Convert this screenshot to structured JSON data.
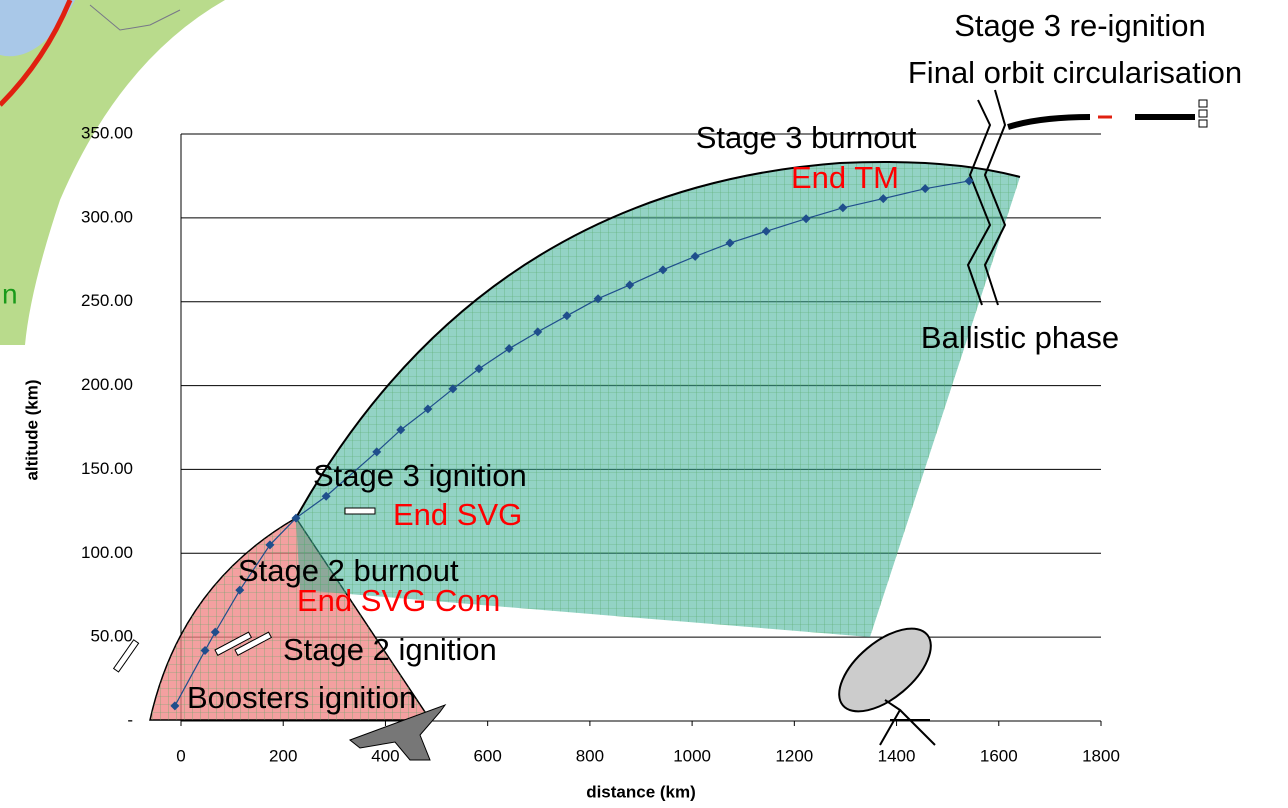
{
  "chart_data": {
    "type": "line",
    "xlabel": "distance (km)",
    "ylabel": "altitude (km)",
    "xlim": [
      0,
      1800
    ],
    "ylim": [
      0,
      350
    ],
    "xticks": [
      0,
      200,
      400,
      600,
      800,
      1000,
      1200,
      1400,
      1600,
      1800
    ],
    "yticks": [
      {
        "value": 0,
        "label": "-"
      },
      {
        "value": 50,
        "label": "50.00"
      },
      {
        "value": 100,
        "label": "100.00"
      },
      {
        "value": 150,
        "label": "150.00"
      },
      {
        "value": 200,
        "label": "200.00"
      },
      {
        "value": 250,
        "label": "250.00"
      },
      {
        "value": 300,
        "label": "300.00"
      },
      {
        "value": 350,
        "label": "350.00"
      }
    ],
    "grid": true,
    "series": [
      {
        "color": "#1f4e8c",
        "x": [
          -12,
          47,
          67,
          115,
          174,
          225,
          284,
          383,
          430,
          483,
          532,
          583,
          642,
          698,
          755,
          816,
          878,
          943,
          1006,
          1074,
          1145,
          1223,
          1295,
          1374,
          1456,
          1542
        ],
        "values": [
          9,
          42,
          53,
          78,
          105,
          121,
          134,
          160.5,
          173.6,
          186,
          198,
          210,
          222,
          232,
          241.6,
          251.8,
          260,
          269,
          277,
          285,
          292,
          299.5,
          306,
          311.5,
          317.4,
          322
        ]
      }
    ],
    "annotations": [
      {
        "text": "Stage 3 re-ignition",
        "color": "#000000"
      },
      {
        "text": "Final orbit circularisation",
        "color": "#000000"
      },
      {
        "text": "Stage 3 burnout",
        "color": "#000000"
      },
      {
        "text": "End TM",
        "color": "#ff0000"
      },
      {
        "text": "Ballistic phase",
        "color": "#000000"
      },
      {
        "text": "Stage 3 ignition",
        "color": "#000000"
      },
      {
        "text": "End SVG",
        "color": "#ff0000"
      },
      {
        "text": "Stage 2 burnout",
        "color": "#000000"
      },
      {
        "text": "End SVG Com",
        "color": "#ff0000"
      },
      {
        "text": "Stage 2 ignition",
        "color": "#000000"
      },
      {
        "text": "Boosters ignition",
        "color": "#000000"
      }
    ],
    "map_fragment_text": "n"
  }
}
